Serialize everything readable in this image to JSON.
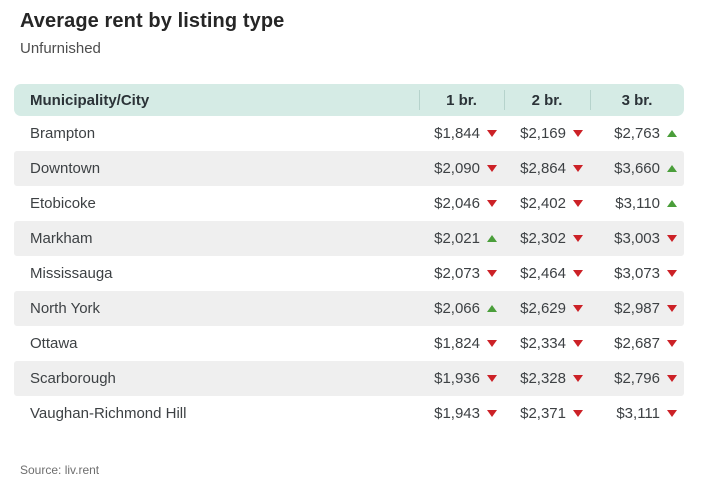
{
  "header": {
    "title": "Average rent by listing type",
    "subtitle": "Unfurnished"
  },
  "footer": {
    "source": "Source: liv.rent"
  },
  "colors": {
    "header_bg": "#d5ebe5",
    "stripe_bg": "#efefef",
    "divider": "#b6d3cc",
    "down_red": "#cc2127",
    "up_green": "#4a9e3a"
  },
  "chart_data": {
    "type": "table",
    "title": "Average rent by listing type",
    "subtitle": "Unfurnished",
    "columns": [
      "Municipality/City",
      "1 br.",
      "2 br.",
      "3 br."
    ],
    "trend_legend": {
      "down": "red down-arrow",
      "up": "green up-arrow"
    },
    "rows": [
      {
        "city": "Brampton",
        "values": [
          {
            "price": "$1,844",
            "trend": "down"
          },
          {
            "price": "$2,169",
            "trend": "down"
          },
          {
            "price": "$2,763",
            "trend": "up"
          }
        ]
      },
      {
        "city": "Downtown",
        "values": [
          {
            "price": "$2,090",
            "trend": "down"
          },
          {
            "price": "$2,864",
            "trend": "down"
          },
          {
            "price": "$3,660",
            "trend": "up"
          }
        ]
      },
      {
        "city": "Etobicoke",
        "values": [
          {
            "price": "$2,046",
            "trend": "down"
          },
          {
            "price": "$2,402",
            "trend": "down"
          },
          {
            "price": "$3,110",
            "trend": "up"
          }
        ]
      },
      {
        "city": "Markham",
        "values": [
          {
            "price": "$2,021",
            "trend": "up"
          },
          {
            "price": "$2,302",
            "trend": "down"
          },
          {
            "price": "$3,003",
            "trend": "down"
          }
        ]
      },
      {
        "city": "Mississauga",
        "values": [
          {
            "price": "$2,073",
            "trend": "down"
          },
          {
            "price": "$2,464",
            "trend": "down"
          },
          {
            "price": "$3,073",
            "trend": "down"
          }
        ]
      },
      {
        "city": "North York",
        "values": [
          {
            "price": "$2,066",
            "trend": "up"
          },
          {
            "price": "$2,629",
            "trend": "down"
          },
          {
            "price": "$2,987",
            "trend": "down"
          }
        ]
      },
      {
        "city": "Ottawa",
        "values": [
          {
            "price": "$1,824",
            "trend": "down"
          },
          {
            "price": "$2,334",
            "trend": "down"
          },
          {
            "price": "$2,687",
            "trend": "down"
          }
        ]
      },
      {
        "city": "Scarborough",
        "values": [
          {
            "price": "$1,936",
            "trend": "down"
          },
          {
            "price": "$2,328",
            "trend": "down"
          },
          {
            "price": "$2,796",
            "trend": "down"
          }
        ]
      },
      {
        "city": "Vaughan-Richmond Hill",
        "values": [
          {
            "price": "$1,943",
            "trend": "down"
          },
          {
            "price": "$2,371",
            "trend": "down"
          },
          {
            "price": "$3,111",
            "trend": "down"
          }
        ]
      }
    ]
  }
}
